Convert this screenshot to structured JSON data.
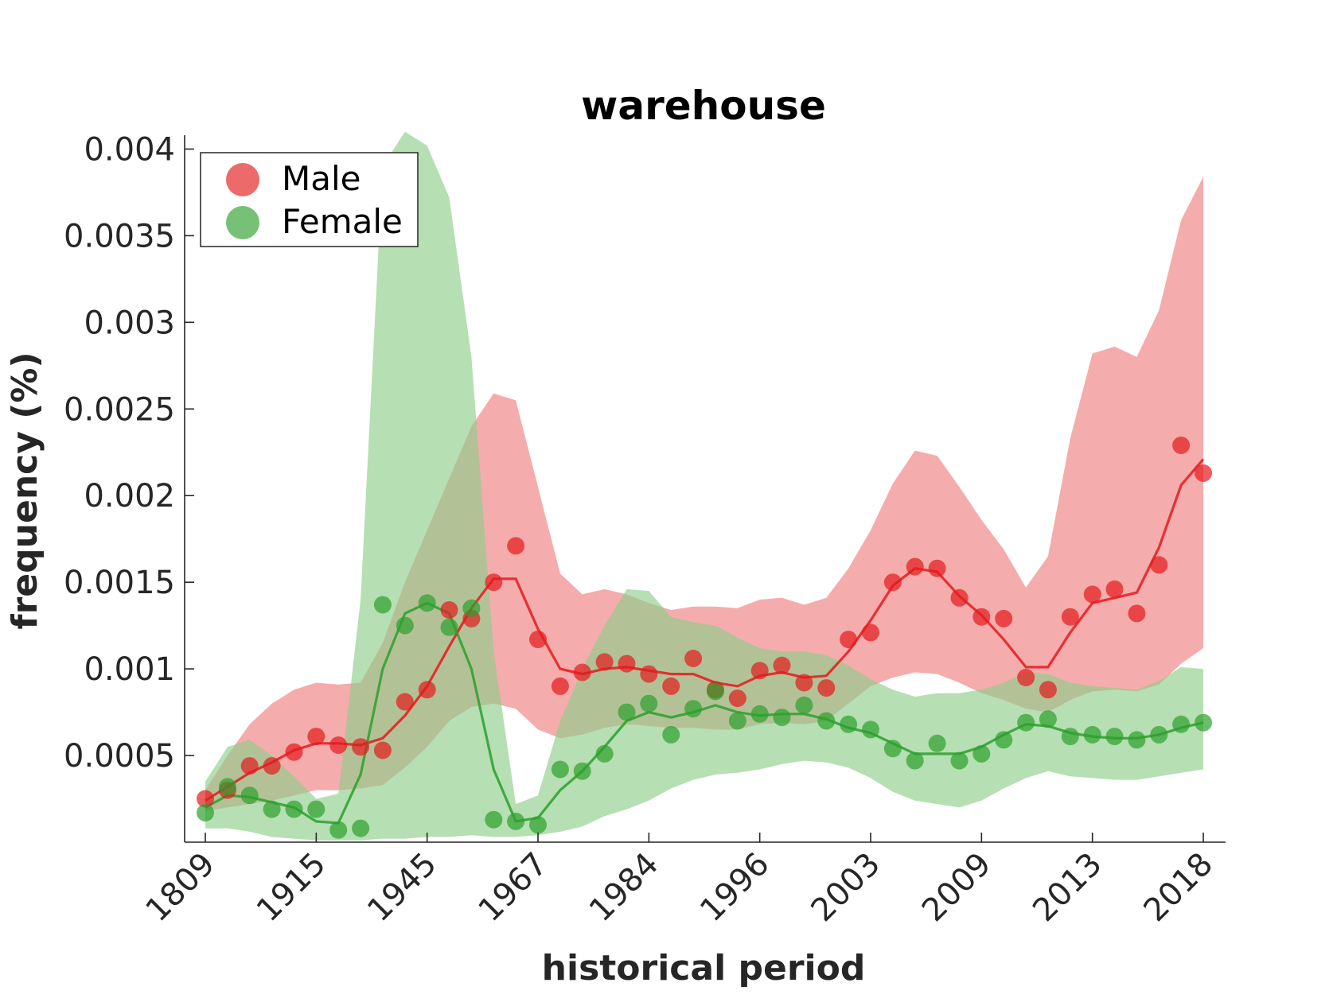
{
  "chart_data": {
    "type": "line",
    "title": "warehouse",
    "xlabel": "historical period",
    "ylabel": "frequency (%)",
    "x_tick_labels": [
      "1809",
      "1915",
      "1945",
      "1967",
      "1984",
      "1996",
      "2003",
      "2009",
      "2013",
      "2018"
    ],
    "y_ticks": [
      0.0005,
      0.001,
      0.0015,
      0.002,
      0.0025,
      0.003,
      0.0035,
      0.004
    ],
    "y_tick_labels": [
      "0.0005",
      "0.001",
      "0.0015",
      "0.002",
      "0.0025",
      "0.003",
      "0.0035",
      "0.004"
    ],
    "ylim": [
      0,
      0.00408
    ],
    "grid": false,
    "legend_position": "top-left",
    "series": [
      {
        "name": "Male",
        "color": "#e41a1c",
        "band_color": "#f08080",
        "points": [
          0.00025,
          0.0003,
          0.00044,
          0.00044,
          0.00052,
          0.00061,
          0.00056,
          0.00055,
          0.00053,
          0.00081,
          0.00088,
          0.00134,
          0.00129,
          0.0015,
          0.00171,
          0.00117,
          0.0009,
          0.00098,
          0.00104,
          0.00103,
          0.00097,
          0.0009,
          0.00106,
          0.00088,
          0.00083,
          0.00099,
          0.00102,
          0.00092,
          0.00089,
          0.00117,
          0.00121,
          0.0015,
          0.00159,
          0.00158,
          0.00141,
          0.0013,
          0.00129,
          0.00095,
          0.00088,
          0.0013,
          0.00143,
          0.00146,
          0.00132,
          0.0016,
          0.00229,
          0.00213
        ],
        "line": [
          0.00024,
          0.00032,
          0.0004,
          0.00046,
          0.00053,
          0.00057,
          0.00057,
          0.00056,
          0.0006,
          0.00073,
          0.0009,
          0.00113,
          0.00135,
          0.00152,
          0.00152,
          0.00123,
          0.001,
          0.00097,
          0.001,
          0.00101,
          0.00099,
          0.00097,
          0.00097,
          0.00092,
          0.0009,
          0.00096,
          0.00098,
          0.00095,
          0.00096,
          0.0011,
          0.00128,
          0.00148,
          0.00158,
          0.00156,
          0.00142,
          0.00131,
          0.00117,
          0.00101,
          0.00101,
          0.00121,
          0.00138,
          0.00141,
          0.00144,
          0.0017,
          0.00206,
          0.00221
        ],
        "band_upper": [
          0.0003,
          0.0005,
          0.00068,
          0.0008,
          0.00088,
          0.00092,
          0.00091,
          0.00092,
          0.00115,
          0.0015,
          0.0018,
          0.0021,
          0.0024,
          0.00259,
          0.00255,
          0.00205,
          0.00155,
          0.00143,
          0.00146,
          0.00143,
          0.00138,
          0.00134,
          0.00136,
          0.00136,
          0.00135,
          0.0014,
          0.00141,
          0.00137,
          0.00141,
          0.00158,
          0.0018,
          0.00207,
          0.00226,
          0.00223,
          0.00205,
          0.00186,
          0.00169,
          0.00147,
          0.00165,
          0.00233,
          0.00282,
          0.00286,
          0.0028,
          0.00307,
          0.00359,
          0.00384
        ],
        "band_lower": [
          0.00018,
          0.0002,
          0.00022,
          0.00024,
          0.00027,
          0.0003,
          0.0003,
          0.00031,
          0.00033,
          0.00043,
          0.00055,
          0.0007,
          0.00078,
          0.0008,
          0.00077,
          0.00065,
          0.0006,
          0.00062,
          0.00066,
          0.00068,
          0.00067,
          0.00066,
          0.00066,
          0.00065,
          0.00065,
          0.00068,
          0.00069,
          0.00068,
          0.0007,
          0.0008,
          0.0009,
          0.00095,
          0.00098,
          0.00097,
          0.00092,
          0.00086,
          0.00082,
          0.00077,
          0.00075,
          0.00082,
          0.00087,
          0.00088,
          0.00087,
          0.00091,
          0.00103,
          0.00112
        ]
      },
      {
        "name": "Female",
        "color": "#2ca02c",
        "band_color": "#8fce8a",
        "points": [
          0.00017,
          0.00032,
          0.00027,
          0.00019,
          0.00019,
          0.00019,
          7e-05,
          8e-05,
          0.00137,
          0.00125,
          0.00138,
          0.00124,
          0.00135,
          0.00013,
          0.00012,
          0.0001,
          0.00042,
          0.00041,
          0.00051,
          0.00075,
          0.0008,
          0.00062,
          0.00077,
          0.00087,
          0.0007,
          0.00074,
          0.00072,
          0.00079,
          0.0007,
          0.00068,
          0.00065,
          0.00054,
          0.00047,
          0.00057,
          0.00047,
          0.00051,
          0.00059,
          0.00069,
          0.00071,
          0.00061,
          0.00062,
          0.00061,
          0.00059,
          0.00062,
          0.00068,
          0.00069
        ],
        "line": [
          0.0002,
          0.00027,
          0.00026,
          0.00023,
          0.0002,
          0.00012,
          0.00011,
          0.00039,
          0.001,
          0.00132,
          0.00138,
          0.00132,
          0.001,
          0.00042,
          0.00012,
          0.00014,
          0.0003,
          0.00041,
          0.00055,
          0.0007,
          0.00075,
          0.00072,
          0.00075,
          0.00079,
          0.00075,
          0.00073,
          0.00074,
          0.00074,
          0.00071,
          0.00066,
          0.00063,
          0.00057,
          0.00051,
          0.00051,
          0.00051,
          0.00055,
          0.00062,
          0.00068,
          0.00067,
          0.00063,
          0.00061,
          0.0006,
          0.0006,
          0.00062,
          0.00066,
          0.00069
        ],
        "band_upper": [
          0.00035,
          0.00055,
          0.00059,
          0.0005,
          0.00038,
          0.00025,
          0.00028,
          0.0014,
          0.0039,
          0.0041,
          0.00402,
          0.00372,
          0.0028,
          0.0011,
          0.00022,
          0.00027,
          0.0007,
          0.001,
          0.00125,
          0.00146,
          0.00145,
          0.0013,
          0.00127,
          0.00125,
          0.00118,
          0.00112,
          0.0011,
          0.0011,
          0.00108,
          0.00102,
          0.00094,
          0.00088,
          0.00084,
          0.00086,
          0.00086,
          0.00088,
          0.00092,
          0.00098,
          0.00097,
          0.00092,
          0.0009,
          0.00089,
          0.00088,
          0.00093,
          0.00101,
          0.001
        ],
        "band_lower": [
          8e-05,
          8e-05,
          6e-05,
          3e-05,
          2e-05,
          1e-05,
          1e-05,
          1e-05,
          2e-05,
          2e-05,
          3e-05,
          3e-05,
          4e-05,
          3e-05,
          3e-05,
          4e-05,
          6e-05,
          9e-05,
          0.00015,
          0.00019,
          0.00024,
          0.00031,
          0.00036,
          0.00039,
          0.0004,
          0.00042,
          0.00045,
          0.00047,
          0.00046,
          0.00043,
          0.00037,
          0.00029,
          0.00024,
          0.00022,
          0.0002,
          0.00024,
          0.00031,
          0.00037,
          0.00041,
          0.00038,
          0.00037,
          0.00036,
          0.00036,
          0.00038,
          0.0004,
          0.00042
        ]
      }
    ]
  }
}
